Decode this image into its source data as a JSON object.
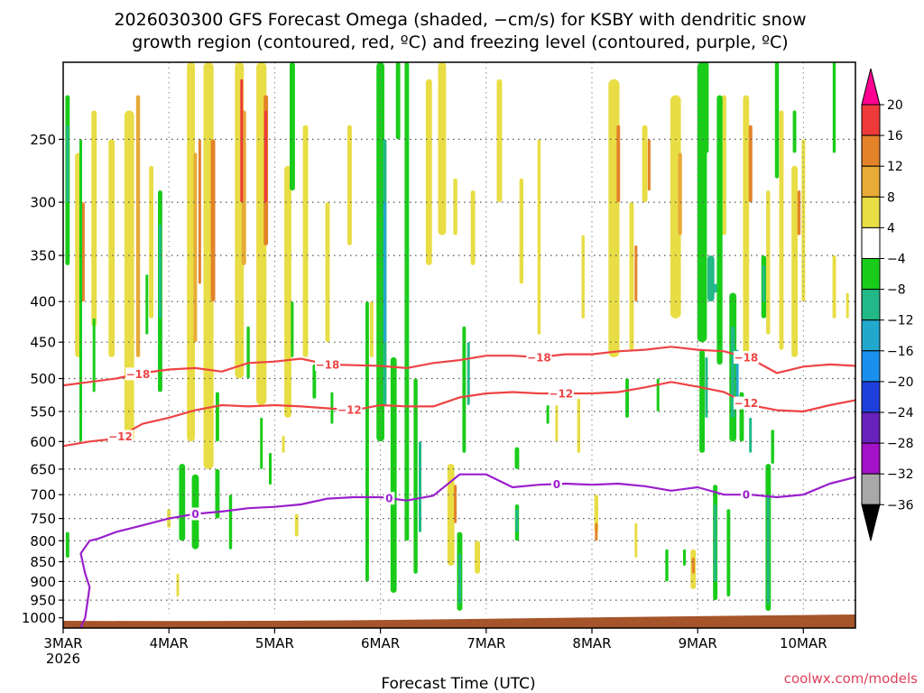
{
  "chart_data": {
    "type": "heatmap",
    "title_line1": "2026030300 GFS Forecast Omega (shaded, −cm/s) for KSBY with dendritic snow",
    "title_line2": "growth region (contoured, red, ºC) and freezing level (contoured, purple, ºC)",
    "xlabel": "Forecast Time (UTC)",
    "credit": "coolwx.com/models",
    "x_ticks": [
      {
        "t": 0,
        "label": "3MAR",
        "sub": "2026"
      },
      {
        "t": 24,
        "label": "4MAR",
        "sub": ""
      },
      {
        "t": 48,
        "label": "5MAR",
        "sub": ""
      },
      {
        "t": 72,
        "label": "6MAR",
        "sub": ""
      },
      {
        "t": 96,
        "label": "7MAR",
        "sub": ""
      },
      {
        "t": 120,
        "label": "8MAR",
        "sub": ""
      },
      {
        "t": 144,
        "label": "9MAR",
        "sub": ""
      },
      {
        "t": 168,
        "label": "10MAR",
        "sub": ""
      }
    ],
    "x_range_hours": [
      0,
      180
    ],
    "y_axis": "pressure (hPa), log scale, reversed",
    "y_range": [
      1030,
      200
    ],
    "y_ticks": [
      250,
      300,
      350,
      400,
      450,
      500,
      550,
      600,
      650,
      700,
      750,
      800,
      850,
      900,
      950,
      1000
    ],
    "colorbar": {
      "levels": [
        "20",
        "16",
        "12",
        "8",
        "4",
        "−4",
        "−8",
        "−12",
        "−16",
        "−20",
        "−24",
        "−28",
        "−32",
        "−36"
      ],
      "colors": [
        "#ff0090",
        "#ee3a3a",
        "#e4822a",
        "#e7ab36",
        "#e8dd44",
        "#ffffff",
        "#1acc1a",
        "#22b888",
        "#22a8cc",
        "#1a90ee",
        "#1f3fdd",
        "#6622bb",
        "#a311c8",
        "#a8a8a8",
        "#000000"
      ]
    },
    "contours": {
      "minus18": {
        "label": "−18",
        "color": "#ee4444",
        "points": [
          [
            0,
            510
          ],
          [
            6,
            505
          ],
          [
            12,
            500
          ],
          [
            18,
            492
          ],
          [
            24,
            487
          ],
          [
            30,
            485
          ],
          [
            36,
            490
          ],
          [
            42,
            478
          ],
          [
            48,
            476
          ],
          [
            54,
            472
          ],
          [
            60,
            480
          ],
          [
            66,
            481
          ],
          [
            72,
            482
          ],
          [
            78,
            485
          ],
          [
            84,
            478
          ],
          [
            90,
            474
          ],
          [
            96,
            468
          ],
          [
            102,
            468
          ],
          [
            108,
            470
          ],
          [
            114,
            466
          ],
          [
            120,
            466
          ],
          [
            126,
            462
          ],
          [
            132,
            460
          ],
          [
            138,
            456
          ],
          [
            144,
            460
          ],
          [
            150,
            462
          ],
          [
            156,
            472
          ],
          [
            162,
            492
          ],
          [
            168,
            483
          ],
          [
            174,
            480
          ],
          [
            180,
            482
          ]
        ],
        "labels": [
          [
            17,
            "−18"
          ],
          [
            60,
            "−18"
          ],
          [
            108,
            "−18"
          ],
          [
            155,
            "−18"
          ]
        ]
      },
      "minus12": {
        "label": "−12",
        "color": "#ee4444",
        "points": [
          [
            0,
            608
          ],
          [
            6,
            600
          ],
          [
            12,
            595
          ],
          [
            18,
            570
          ],
          [
            24,
            560
          ],
          [
            30,
            548
          ],
          [
            36,
            540
          ],
          [
            42,
            542
          ],
          [
            48,
            540
          ],
          [
            54,
            542
          ],
          [
            60,
            545
          ],
          [
            66,
            548
          ],
          [
            72,
            540
          ],
          [
            78,
            542
          ],
          [
            84,
            542
          ],
          [
            90,
            528
          ],
          [
            96,
            522
          ],
          [
            102,
            520
          ],
          [
            108,
            522
          ],
          [
            114,
            522
          ],
          [
            120,
            522
          ],
          [
            126,
            520
          ],
          [
            132,
            513
          ],
          [
            138,
            505
          ],
          [
            144,
            512
          ],
          [
            150,
            520
          ],
          [
            156,
            540
          ],
          [
            162,
            548
          ],
          [
            168,
            550
          ],
          [
            174,
            540
          ],
          [
            180,
            532
          ]
        ],
        "labels": [
          [
            13,
            "−12"
          ],
          [
            65,
            "−12"
          ],
          [
            113,
            "−12"
          ],
          [
            155,
            "−12"
          ]
        ]
      },
      "zero": {
        "label": "0",
        "color": "#9a1fcc",
        "points": [
          [
            4,
            1028
          ],
          [
            5,
            1000
          ],
          [
            6,
            915
          ],
          [
            5,
            880
          ],
          [
            4,
            830
          ],
          [
            6,
            800
          ],
          [
            8,
            795
          ],
          [
            12,
            780
          ],
          [
            18,
            765
          ],
          [
            24,
            750
          ],
          [
            30,
            740
          ],
          [
            36,
            735
          ],
          [
            42,
            728
          ],
          [
            48,
            725
          ],
          [
            54,
            720
          ],
          [
            60,
            708
          ],
          [
            66,
            705
          ],
          [
            72,
            705
          ],
          [
            78,
            712
          ],
          [
            84,
            702
          ],
          [
            90,
            660
          ],
          [
            96,
            660
          ],
          [
            102,
            685
          ],
          [
            108,
            680
          ],
          [
            114,
            678
          ],
          [
            120,
            680
          ],
          [
            126,
            678
          ],
          [
            132,
            683
          ],
          [
            138,
            692
          ],
          [
            144,
            685
          ],
          [
            150,
            700
          ],
          [
            156,
            700
          ],
          [
            162,
            705
          ],
          [
            168,
            700
          ],
          [
            174,
            678
          ],
          [
            180,
            665
          ]
        ],
        "labels": [
          [
            30,
            "0"
          ],
          [
            74,
            "0"
          ],
          [
            112,
            "0"
          ],
          [
            155,
            "0"
          ]
        ]
      }
    }
  }
}
